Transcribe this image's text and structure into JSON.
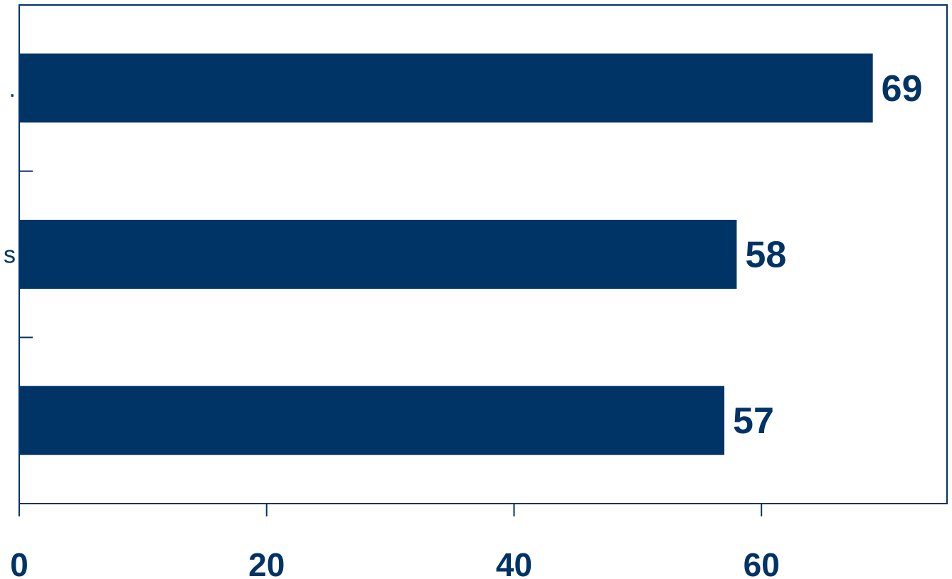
{
  "chart_data": {
    "type": "bar",
    "orientation": "horizontal",
    "categories": [
      "",
      "",
      ""
    ],
    "category_label_fragments": [
      ".",
      "s",
      ""
    ],
    "values": [
      69,
      58,
      57
    ],
    "data_labels": [
      "69",
      "58",
      "57"
    ],
    "x_ticks": [
      0,
      20,
      40,
      60
    ],
    "x_tick_labels": [
      "0",
      "20",
      "40",
      "60"
    ],
    "xlim": [
      0,
      75
    ],
    "xlabel": "",
    "ylabel": "",
    "title": "",
    "grid": false,
    "colors": {
      "bar": "#003366",
      "axis": "#003366",
      "background": "#ffffff"
    }
  }
}
